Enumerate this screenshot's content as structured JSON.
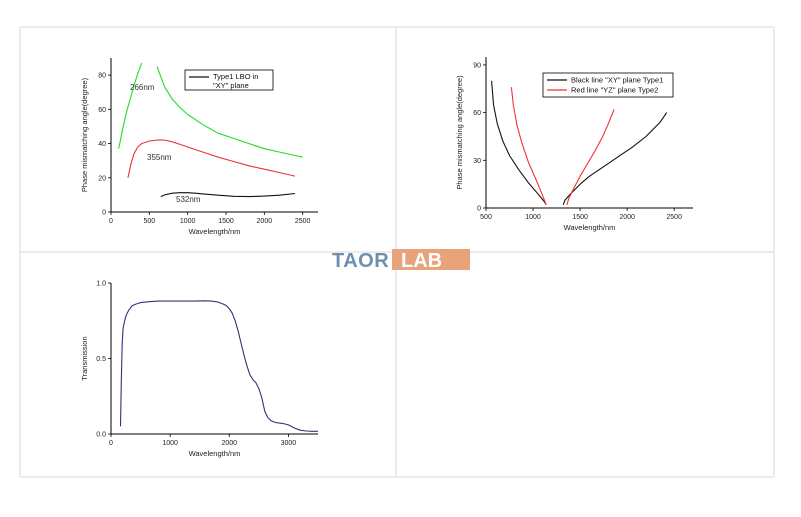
{
  "watermark": {
    "part1": "TAOR",
    "part2": "LAB",
    "color1": "#6f8fae",
    "color2": "#e8a37a"
  },
  "chart_data": [
    {
      "type": "line",
      "title": "",
      "xlabel": "Wavelength/nm",
      "ylabel": "Phase mismatching angle(degree)",
      "xlim": [
        0,
        2700
      ],
      "ylim": [
        0,
        90
      ],
      "xticks": [
        0,
        500,
        1000,
        1500,
        2000,
        2500
      ],
      "yticks": [
        0,
        20,
        40,
        60,
        80
      ],
      "legend": {
        "placement": "top-right",
        "entries": [
          "Type1 LBO in",
          "\"XY\" plane"
        ]
      },
      "annotations": [
        "266nm",
        "355nm",
        "532nm"
      ],
      "series": [
        {
          "name": "266nm",
          "color": "#22dd22",
          "x": [
            100,
            150,
            200,
            250,
            300,
            350,
            400
          ],
          "y": [
            37,
            48,
            58,
            66,
            74,
            81,
            87
          ],
          "x2": [
            600,
            700,
            800,
            900,
            1000,
            1100,
            1200,
            1400,
            1600,
            1800,
            2000,
            2200,
            2400,
            2500
          ],
          "y2": [
            85,
            73,
            66,
            61,
            57,
            54,
            51,
            46,
            43,
            40,
            37,
            35,
            33,
            32
          ]
        },
        {
          "name": "355nm",
          "color": "#ee3333",
          "x": [
            220,
            260,
            300,
            350,
            400,
            500,
            600,
            700,
            800,
            900,
            1000,
            1200,
            1400,
            1600,
            1800,
            2000,
            2200,
            2400
          ],
          "y": [
            20,
            28,
            34,
            38,
            40,
            41.5,
            42,
            42,
            41,
            39.5,
            38,
            35,
            32,
            29.5,
            27,
            25,
            23,
            21
          ]
        },
        {
          "name": "532nm",
          "color": "#111111",
          "x": [
            650,
            700,
            800,
            900,
            1000,
            1100,
            1200,
            1400,
            1600,
            1800,
            2000,
            2200,
            2400
          ],
          "y": [
            9,
            10,
            11,
            11.3,
            11.3,
            11,
            10.6,
            9.8,
            9.2,
            9,
            9.3,
            9.8,
            10.8
          ]
        }
      ]
    },
    {
      "type": "line",
      "title": "",
      "xlabel": "Wavelength/nm",
      "ylabel": "Phase mismatching angle(degree)",
      "xlim": [
        500,
        2700
      ],
      "ylim": [
        0,
        95
      ],
      "xticks": [
        500,
        1000,
        1500,
        2000,
        2500
      ],
      "yticks": [
        0,
        30,
        60,
        90
      ],
      "legend": {
        "placement": "top-right",
        "entries": [
          "Black line \"XY\" plane Type1",
          "Red line \"YZ\" plane Type2"
        ]
      },
      "series": [
        {
          "name": "Black line \"XY\" plane Type1",
          "color": "#111111",
          "x": [
            560,
            580,
            620,
            680,
            750,
            850,
            950,
            1050,
            1120,
            1140
          ],
          "y": [
            80,
            65,
            53,
            42,
            33,
            24,
            16,
            9,
            4,
            2
          ],
          "x2": [
            1320,
            1340,
            1400,
            1500,
            1600,
            1750,
            1900,
            2050,
            2200,
            2350,
            2420
          ],
          "y2": [
            2,
            5,
            9,
            15,
            20,
            26,
            32,
            38,
            45,
            54,
            60
          ]
        },
        {
          "name": "Red line \"YZ\" plane Type2",
          "color": "#ee3333",
          "x": [
            770,
            790,
            830,
            880,
            950,
            1030,
            1100,
            1140
          ],
          "y": [
            76,
            65,
            52,
            41,
            29,
            18,
            8,
            2
          ],
          "x2": [
            1360,
            1380,
            1430,
            1500,
            1580,
            1660,
            1740,
            1800,
            1860
          ],
          "y2": [
            2,
            6,
            12,
            20,
            28,
            36,
            45,
            53,
            62
          ]
        }
      ]
    },
    {
      "type": "line",
      "title": "",
      "xlabel": "Wavelength/nm",
      "ylabel": "Transmission",
      "xlim": [
        0,
        3500
      ],
      "ylim": [
        0,
        1.0
      ],
      "xticks": [
        0,
        1000,
        2000,
        3000
      ],
      "yticks": [
        0.0,
        0.5,
        1.0
      ],
      "ytick_labels": [
        "0.0",
        "0.5",
        "1.0"
      ],
      "series": [
        {
          "name": "",
          "color": "#333377",
          "x": [
            160,
            175,
            190,
            205,
            230,
            260,
            300,
            360,
            420,
            500,
            600,
            700,
            800,
            1000,
            1200,
            1400,
            1600,
            1700,
            1800,
            1900,
            1950,
            2000,
            2050,
            2100,
            2150,
            2200,
            2250,
            2300,
            2350,
            2400,
            2450,
            2500,
            2550,
            2600,
            2650,
            2700,
            2750,
            2800,
            2900,
            3000,
            3100,
            3200,
            3300,
            3400,
            3500
          ],
          "y": [
            0.05,
            0.35,
            0.6,
            0.7,
            0.75,
            0.79,
            0.82,
            0.85,
            0.86,
            0.87,
            0.875,
            0.878,
            0.88,
            0.88,
            0.88,
            0.88,
            0.882,
            0.88,
            0.875,
            0.86,
            0.85,
            0.83,
            0.8,
            0.75,
            0.68,
            0.6,
            0.52,
            0.45,
            0.39,
            0.36,
            0.34,
            0.3,
            0.24,
            0.15,
            0.11,
            0.09,
            0.08,
            0.075,
            0.07,
            0.06,
            0.04,
            0.025,
            0.02,
            0.018,
            0.018
          ]
        }
      ]
    }
  ]
}
